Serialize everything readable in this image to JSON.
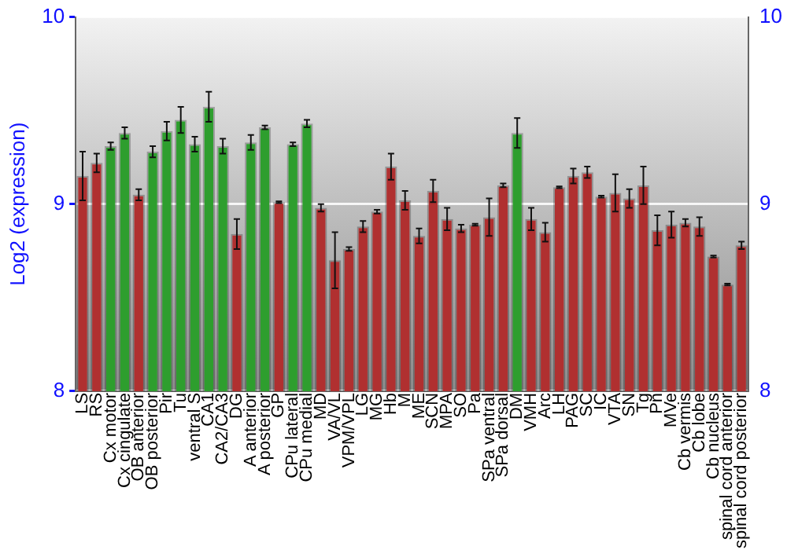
{
  "chart_data": {
    "type": "bar",
    "ylabel": "Log2 (expression)",
    "categories": [
      "LS",
      "RS",
      "Cx motor",
      "Cx cingulate",
      "OB anterior",
      "OB posterior",
      "Pir",
      "Tu",
      "ventral S",
      "CA1",
      "CA2/CA3",
      "DG",
      "A anterior",
      "A posterior",
      "GP",
      "CPu lateral",
      "CPu medial",
      "MD",
      "VA/VL",
      "VPM/VPL",
      "LG",
      "MG",
      "Hb",
      "M",
      "ME",
      "SCN",
      "MPA",
      "SO",
      "Pa",
      "SPa ventral",
      "SPa dorsal",
      "DM",
      "VMH",
      "Arc",
      "LH",
      "PAG",
      "SC",
      "IC",
      "VTA",
      "SN",
      "Tg",
      "Pn",
      "MVe",
      "Cb vermis",
      "Cb lobe",
      "Cb nucleus",
      "spinal cord anterior",
      "spinal cord posterior"
    ],
    "values": [
      9.15,
      9.22,
      9.31,
      9.38,
      9.05,
      9.28,
      9.39,
      9.45,
      9.32,
      9.52,
      9.31,
      8.84,
      9.33,
      9.41,
      9.01,
      9.32,
      9.43,
      8.98,
      8.7,
      8.76,
      8.88,
      8.96,
      9.2,
      9.02,
      8.83,
      9.07,
      8.92,
      8.87,
      8.89,
      8.93,
      9.1,
      9.38,
      8.92,
      8.85,
      9.09,
      9.15,
      9.17,
      9.04,
      9.06,
      9.03,
      9.1,
      8.86,
      8.89,
      8.9,
      8.88,
      8.72,
      8.57,
      8.78
    ],
    "errors": [
      0.13,
      0.05,
      0.02,
      0.03,
      0.03,
      0.03,
      0.05,
      0.07,
      0.04,
      0.08,
      0.04,
      0.08,
      0.04,
      0.01,
      0.005,
      0.01,
      0.02,
      0.02,
      0.15,
      0.01,
      0.03,
      0.01,
      0.07,
      0.05,
      0.04,
      0.06,
      0.06,
      0.02,
      0.005,
      0.1,
      0.01,
      0.08,
      0.06,
      0.05,
      0.005,
      0.04,
      0.03,
      0.005,
      0.1,
      0.05,
      0.1,
      0.08,
      0.07,
      0.02,
      0.05,
      0.005,
      0.005,
      0.02
    ],
    "colors": [
      "#b03030",
      "#b03030",
      "#2e9e2e",
      "#2e9e2e",
      "#b03030",
      "#2e9e2e",
      "#2e9e2e",
      "#2e9e2e",
      "#2e9e2e",
      "#2e9e2e",
      "#2e9e2e",
      "#b03030",
      "#2e9e2e",
      "#2e9e2e",
      "#b03030",
      "#2e9e2e",
      "#2e9e2e",
      "#b03030",
      "#b03030",
      "#b03030",
      "#b03030",
      "#b03030",
      "#b03030",
      "#b03030",
      "#b03030",
      "#b03030",
      "#b03030",
      "#b03030",
      "#b03030",
      "#b03030",
      "#b03030",
      "#2e9e2e",
      "#b03030",
      "#b03030",
      "#b03030",
      "#b03030",
      "#b03030",
      "#b03030",
      "#b03030",
      "#b03030",
      "#b03030",
      "#b03030",
      "#b03030",
      "#b03030",
      "#b03030",
      "#b03030",
      "#b03030",
      "#b03030"
    ],
    "ylim": [
      8,
      10
    ],
    "yticks": [
      8,
      9,
      10
    ],
    "y2lim": [
      8,
      10
    ],
    "y2ticks": [
      8,
      9,
      10
    ],
    "grid": "y"
  }
}
